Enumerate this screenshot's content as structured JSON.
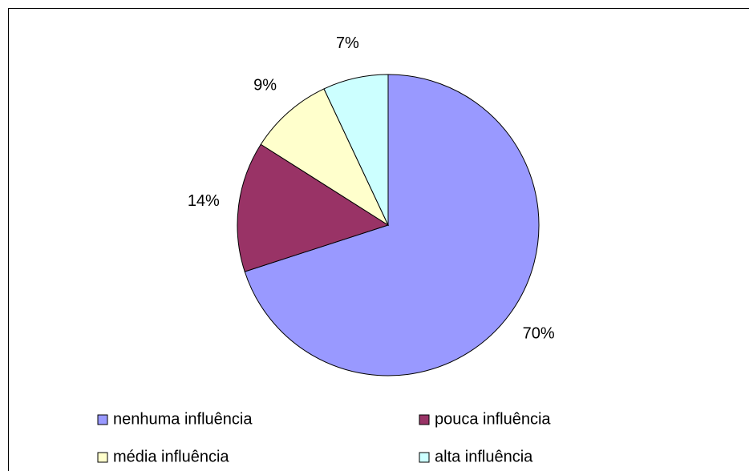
{
  "chart_data": {
    "type": "pie",
    "categories": [
      "nenhuma influência",
      "pouca influência",
      "média influência",
      "alta influência"
    ],
    "values": [
      70,
      14,
      9,
      7
    ],
    "value_labels": [
      "70%",
      "14%",
      "9%",
      "7%"
    ],
    "colors": [
      "#9999ff",
      "#993366",
      "#ffffcc",
      "#ccffff"
    ],
    "legend": "bottom"
  }
}
